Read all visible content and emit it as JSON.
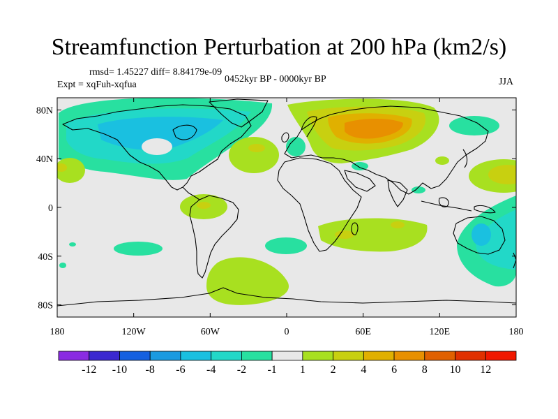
{
  "title": "Streamfunction Perturbation at 200 hPa (km2/s)",
  "stats_line": "rmsd= 1.45227  diff= 8.84179e-09",
  "experiment": "Expt = xqFuh-xqfua",
  "period": "0452kyr BP - 0000kyr BP",
  "season": "JJA",
  "map": {
    "lon_range": [
      -180,
      180
    ],
    "lat_range": [
      -90,
      90
    ],
    "lat_ticks": [
      {
        "value": 80,
        "label": "80N"
      },
      {
        "value": 40,
        "label": "40N"
      },
      {
        "value": 0,
        "label": "0"
      },
      {
        "value": -40,
        "label": "40S"
      },
      {
        "value": -80,
        "label": "80S"
      }
    ],
    "lon_ticks": [
      {
        "value": -180,
        "label": "180"
      },
      {
        "value": -120,
        "label": "120W"
      },
      {
        "value": -60,
        "label": "60W"
      },
      {
        "value": 0,
        "label": "0"
      },
      {
        "value": 60,
        "label": "60E"
      },
      {
        "value": 120,
        "label": "120E"
      },
      {
        "value": 180,
        "label": "180"
      }
    ],
    "background_color": "#e8e8e8"
  },
  "colorbar": {
    "colors": [
      "#8a2be2",
      "#3b28d0",
      "#1560e0",
      "#1a9ae0",
      "#1ac0e0",
      "#22d8c8",
      "#28e0a0",
      "#e8e8e8",
      "#a8e020",
      "#c8d010",
      "#e0b000",
      "#e89000",
      "#e06000",
      "#e03000",
      "#f01800"
    ],
    "labels": [
      "-12",
      "-10",
      "-8",
      "-6",
      "-4",
      "-2",
      "-1",
      "1",
      "2",
      "4",
      "6",
      "8",
      "10",
      "12"
    ]
  }
}
